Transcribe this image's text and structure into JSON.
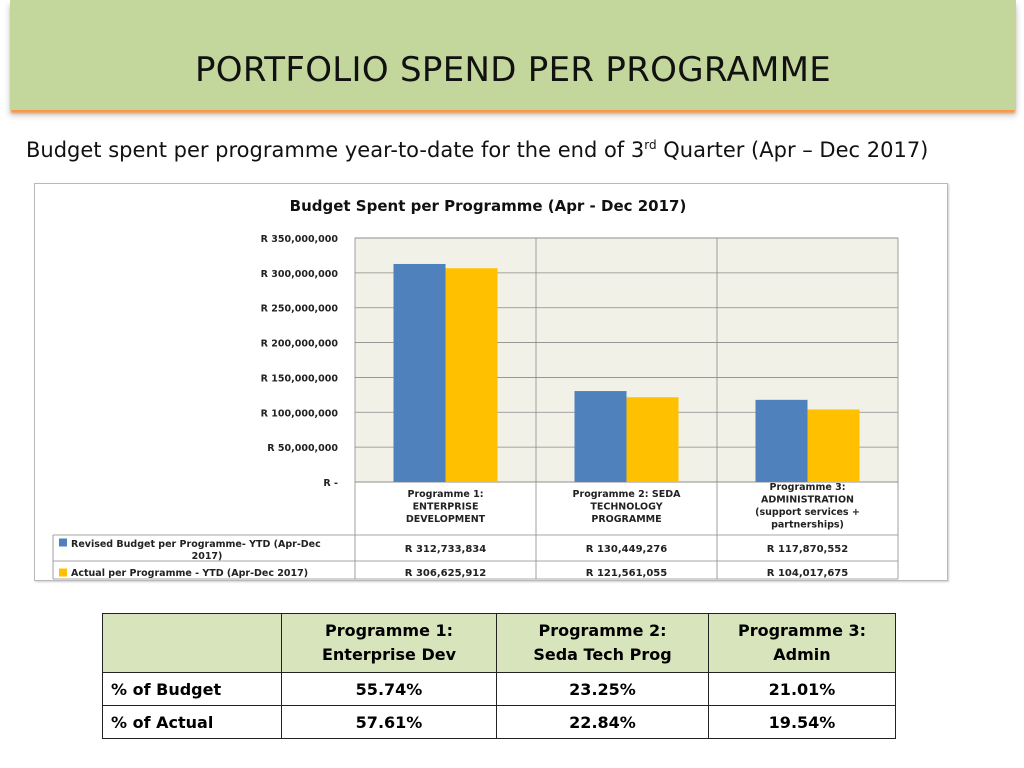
{
  "slide": {
    "title": "PORTFOLIO SPEND PER PROGRAMME",
    "subtitle_before": "Budget spent per programme year-to-date for the end of 3",
    "subtitle_sup": "rd",
    "subtitle_after": " Quarter (Apr – Dec 2017)"
  },
  "colors": {
    "banner": "#c3d69b",
    "banner_accent": "#f79646",
    "budget": "#4f81bd",
    "actual": "#ffc000",
    "table_header": "#d8e4bc"
  },
  "chart_data": {
    "type": "bar",
    "title": "Budget Spent per Programme (Apr - Dec 2017)",
    "categories": [
      [
        "Programme 1:",
        "ENTERPRISE",
        "DEVELOPMENT"
      ],
      [
        "Programme 2: SEDA",
        "TECHNOLOGY",
        "PROGRAMME"
      ],
      [
        "Programme 3:",
        "ADMINISTRATION",
        "(support services +",
        "partnerships)"
      ]
    ],
    "series": [
      {
        "name": "Revised Budget per Programme- YTD (Apr-Dec 2017)",
        "values": [
          312733834,
          130449276,
          117870552
        ],
        "labels": [
          "R 312,733,834",
          "R 130,449,276",
          "R 117,870,552"
        ],
        "color": "#4f81bd"
      },
      {
        "name": "Actual per Programme - YTD (Apr-Dec 2017)",
        "values": [
          306625912,
          121561055,
          104017675
        ],
        "labels": [
          "R 306,625,912",
          "R 121,561,055",
          "R 104,017,675"
        ],
        "color": "#ffc000"
      }
    ],
    "ylim": [
      0,
      350000000
    ],
    "yticks": [
      0,
      50000000,
      100000000,
      150000000,
      200000000,
      250000000,
      300000000,
      350000000
    ],
    "ytick_labels": [
      "R -",
      "R 50,000,000",
      "R 100,000,000",
      "R 150,000,000",
      "R 200,000,000",
      "R 250,000,000",
      "R 300,000,000",
      "R 350,000,000"
    ],
    "grid": true,
    "legend_placement": "data-table-below"
  },
  "pct_table": {
    "headers": [
      [
        "Programme 1:",
        "Enterprise Dev"
      ],
      [
        "Programme 2:",
        "Seda Tech Prog"
      ],
      [
        "Programme 3:",
        "Admin"
      ]
    ],
    "rows": [
      {
        "label": "% of Budget",
        "values": [
          "55.74%",
          "23.25%",
          "21.01%"
        ]
      },
      {
        "label": "% of Actual",
        "values": [
          "57.61%",
          "22.84%",
          "19.54%"
        ]
      }
    ]
  }
}
